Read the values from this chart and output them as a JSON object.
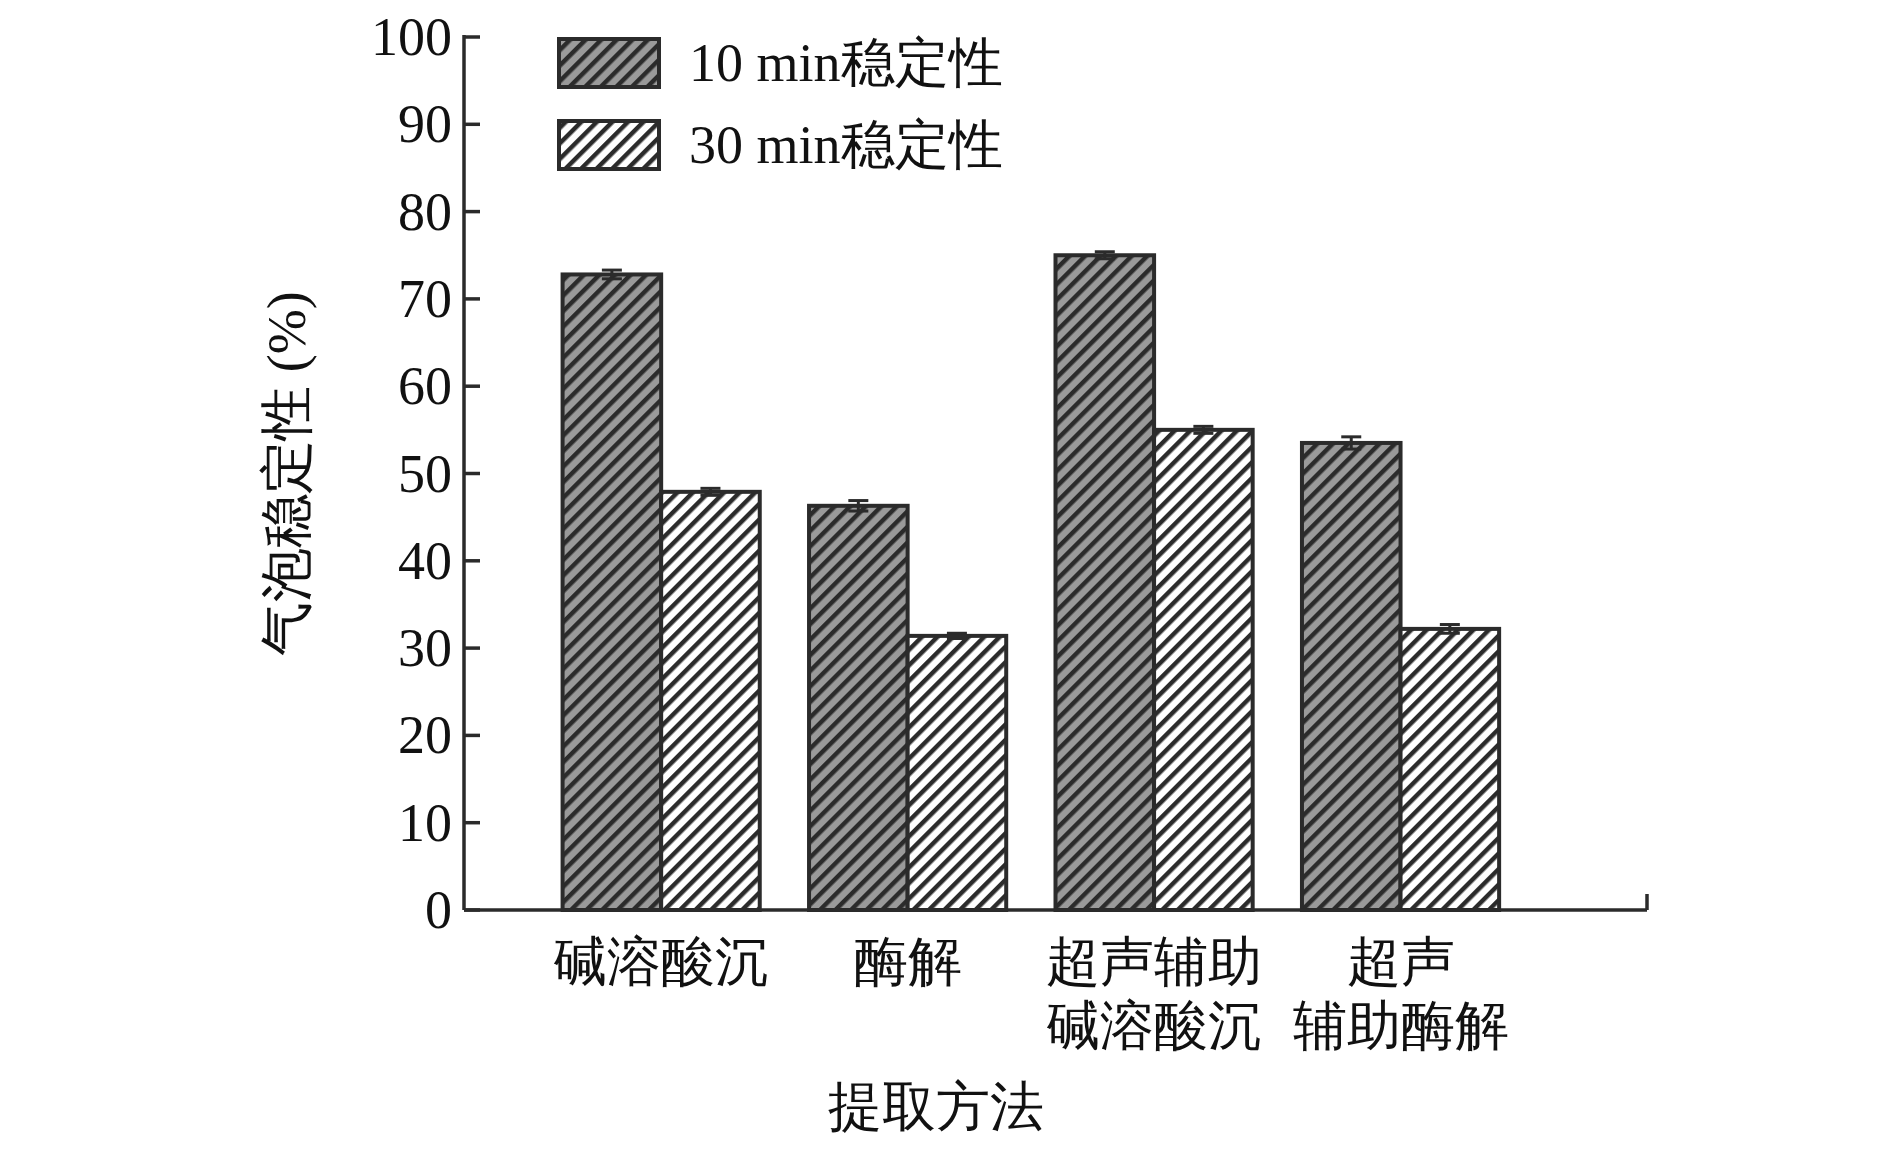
{
  "chart_data": {
    "type": "bar",
    "xlabel": "提取方法",
    "ylabel": "气泡稳定性 (%)",
    "categories": [
      "碱溶酸沉",
      "酶解",
      "超声辅助碱溶酸沉",
      "超声辅助酶解"
    ],
    "series": [
      {
        "name": "10 min稳定性",
        "color": "#2b2b2b",
        "values": [
          72.8,
          46.3,
          75.0,
          53.5
        ],
        "errors": [
          0.5,
          0.6,
          0.4,
          0.7
        ]
      },
      {
        "name": "30 min稳定性",
        "color": "#2b2b2b",
        "values": [
          47.9,
          31.4,
          55.0,
          32.2
        ],
        "errors": [
          0.4,
          0.3,
          0.4,
          0.5
        ]
      }
    ],
    "ylim": [
      0,
      100
    ],
    "yticks": [
      0,
      10,
      20,
      30,
      40,
      50,
      60,
      70,
      80,
      90,
      100
    ],
    "grid": false,
    "legend": "top left"
  }
}
